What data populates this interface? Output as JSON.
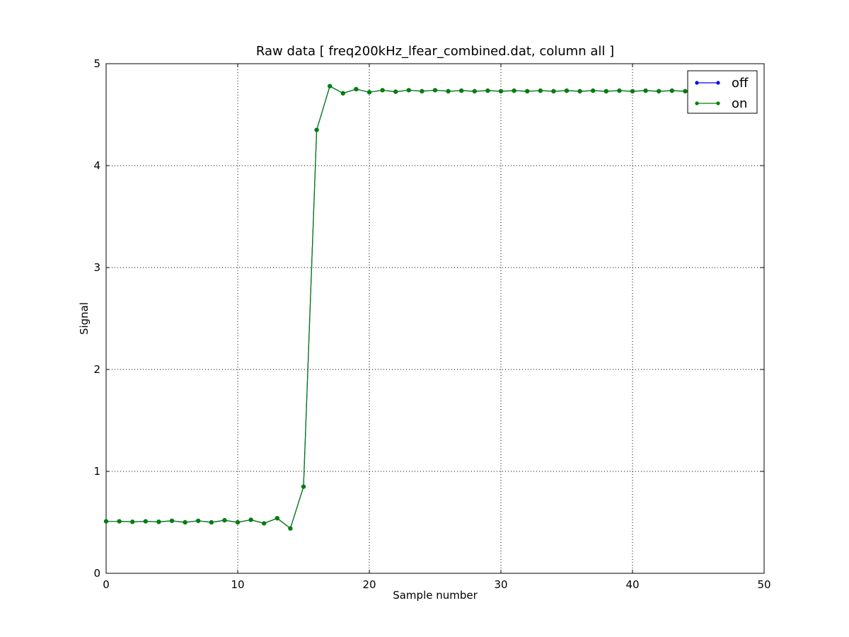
{
  "chart_data": {
    "type": "line",
    "title": "Raw data  [ freq200kHz_lfear_combined.dat, column all ]",
    "xlabel": "Sample number",
    "ylabel": "Signal",
    "xlim": [
      0,
      50
    ],
    "ylim": [
      0,
      5
    ],
    "xticks": [
      "0",
      "10",
      "20",
      "30",
      "40",
      "50"
    ],
    "yticks": [
      "0",
      "1",
      "2",
      "3",
      "4",
      "5"
    ],
    "grid": true,
    "legend_position": "top-right",
    "x": [
      0,
      1,
      2,
      3,
      4,
      5,
      6,
      7,
      8,
      9,
      10,
      11,
      12,
      13,
      14,
      15,
      16,
      17,
      18,
      19,
      20,
      21,
      22,
      23,
      24,
      25,
      26,
      27,
      28,
      29,
      30,
      31,
      32,
      33,
      34,
      35,
      36,
      37,
      38,
      39,
      40,
      41,
      42,
      43,
      44,
      45,
      46,
      47,
      48,
      49
    ],
    "series": [
      {
        "name": "off",
        "color": "#0000ff",
        "values": [
          0.51,
          0.51,
          0.505,
          0.51,
          0.505,
          0.515,
          0.5,
          0.515,
          0.5,
          0.52,
          0.5,
          0.525,
          0.49,
          0.54,
          0.44,
          0.85,
          4.35,
          4.78,
          4.71,
          4.75,
          4.72,
          4.74,
          4.725,
          4.74,
          4.73,
          4.74,
          4.73,
          4.735,
          4.73,
          4.735,
          4.73,
          4.735,
          4.73,
          4.735,
          4.73,
          4.735,
          4.73,
          4.735,
          4.73,
          4.735,
          4.73,
          4.735,
          4.73,
          4.735,
          4.73,
          4.735,
          4.73,
          4.735,
          4.73,
          4.735
        ]
      },
      {
        "name": "on",
        "color": "#008000",
        "values": [
          0.51,
          0.51,
          0.505,
          0.51,
          0.505,
          0.515,
          0.5,
          0.515,
          0.5,
          0.52,
          0.5,
          0.525,
          0.49,
          0.54,
          0.44,
          0.85,
          4.35,
          4.78,
          4.71,
          4.75,
          4.72,
          4.74,
          4.725,
          4.74,
          4.73,
          4.74,
          4.73,
          4.735,
          4.73,
          4.735,
          4.73,
          4.735,
          4.73,
          4.735,
          4.73,
          4.735,
          4.73,
          4.735,
          4.73,
          4.735,
          4.73,
          4.735,
          4.73,
          4.735,
          4.73,
          4.735,
          4.73,
          4.735,
          4.73,
          4.735
        ]
      }
    ]
  }
}
